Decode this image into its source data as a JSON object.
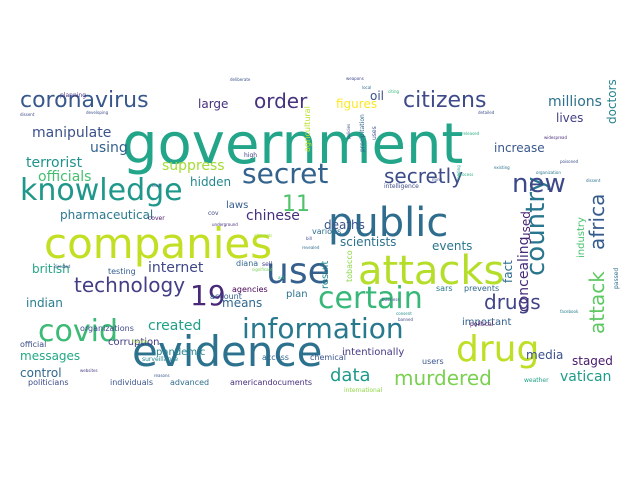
{
  "words": [
    {
      "text": "government",
      "color": "#23a58a"
    },
    {
      "text": "companies",
      "color": "#c2df23"
    },
    {
      "text": "public",
      "color": "#2f6d8e"
    },
    {
      "text": "evidence",
      "color": "#2c728e"
    },
    {
      "text": "attacks",
      "color": "#b5de2b"
    },
    {
      "text": "certain",
      "color": "#37b878"
    },
    {
      "text": "use",
      "color": "#355f8d"
    },
    {
      "text": "information",
      "color": "#29798e"
    },
    {
      "text": "knowledge",
      "color": "#1f988b"
    },
    {
      "text": "secret",
      "color": "#33638d"
    },
    {
      "text": "drug",
      "color": "#bddf26"
    },
    {
      "text": "covid",
      "color": "#3bbb75"
    },
    {
      "text": "country",
      "color": "#2a768e"
    },
    {
      "text": "new",
      "color": "#3e4989"
    },
    {
      "text": "coronavirus",
      "color": "#38588c"
    },
    {
      "text": "citizens",
      "color": "#3e4a89"
    },
    {
      "text": "order",
      "color": "#46327e"
    },
    {
      "text": "secretly",
      "color": "#3d4d8a"
    },
    {
      "text": "technology",
      "color": "#433e85"
    },
    {
      "text": "africa",
      "color": "#365c8d"
    },
    {
      "text": "attack",
      "color": "#5ec962"
    },
    {
      "text": "murdered",
      "color": "#7ad151"
    },
    {
      "text": "drugs",
      "color": "#414487"
    },
    {
      "text": "19",
      "color": "#482878"
    },
    {
      "text": "11",
      "color": "#4ec36b"
    },
    {
      "text": "data",
      "color": "#1e9b8a"
    },
    {
      "text": "manipulate",
      "color": "#3b518b"
    },
    {
      "text": "terrorist",
      "color": "#20928c"
    },
    {
      "text": "using",
      "color": "#34618d"
    },
    {
      "text": "officials",
      "color": "#44bf70"
    },
    {
      "text": "suppress",
      "color": "#a5db36"
    },
    {
      "text": "hidden",
      "color": "#24878e"
    },
    {
      "text": "pharmaceutical",
      "color": "#2a788e"
    },
    {
      "text": "chinese",
      "color": "#472f7d"
    },
    {
      "text": "created",
      "color": "#1fa088"
    },
    {
      "text": "internet",
      "color": "#3f4788"
    },
    {
      "text": "british",
      "color": "#22a785"
    },
    {
      "text": "indian",
      "color": "#277f8e"
    },
    {
      "text": "means",
      "color": "#31688e"
    },
    {
      "text": "deaths",
      "color": "#3a548c"
    },
    {
      "text": "concealing",
      "color": "#472c7a"
    },
    {
      "text": "fact",
      "color": "#2e6e8e"
    },
    {
      "text": "used",
      "color": "#482173"
    },
    {
      "text": "increase",
      "color": "#38588c"
    },
    {
      "text": "millions",
      "color": "#2d718e"
    },
    {
      "text": "lives",
      "color": "#424086"
    },
    {
      "text": "doctors",
      "color": "#26828e"
    },
    {
      "text": "media",
      "color": "#3b528b"
    },
    {
      "text": "staged",
      "color": "#48186a"
    },
    {
      "text": "vatican",
      "color": "#1e9c89"
    },
    {
      "text": "scientists",
      "color": "#2c728e"
    },
    {
      "text": "events",
      "color": "#2a768e"
    },
    {
      "text": "industry",
      "color": "#48c16e"
    },
    {
      "text": "laws",
      "color": "#365d8d"
    },
    {
      "text": "large",
      "color": "#46307e"
    },
    {
      "text": "oil",
      "color": "#3b518b"
    },
    {
      "text": "figures",
      "color": "#fde725"
    },
    {
      "text": "messages",
      "color": "#22a884"
    },
    {
      "text": "control",
      "color": "#31688e"
    },
    {
      "text": "corruption",
      "color": "#433d84"
    },
    {
      "text": "intentionally",
      "color": "#443a83"
    },
    {
      "text": "advanced",
      "color": "#2f6c8e"
    },
    {
      "text": "politicians",
      "color": "#3e4c8a"
    },
    {
      "text": "official",
      "color": "#3c4f8a"
    },
    {
      "text": "important",
      "color": "#34608d"
    },
    {
      "text": "pandemic",
      "color": "#26828e"
    },
    {
      "text": "testing",
      "color": "#355e8d"
    },
    {
      "text": "organizations",
      "color": "#3e4a89"
    },
    {
      "text": "agencies",
      "color": "#440154"
    },
    {
      "text": "sars",
      "color": "#2a788e"
    },
    {
      "text": "prevents",
      "color": "#30698e"
    },
    {
      "text": "result",
      "color": "#23888e"
    },
    {
      "text": "plan",
      "color": "#2c738e"
    },
    {
      "text": "diana",
      "color": "#31688e"
    },
    {
      "text": "intelligence",
      "color": "#3e4c8a"
    },
    {
      "text": "individuals",
      "color": "#3a548c"
    },
    {
      "text": "americandocuments",
      "color": "#472f7d"
    },
    {
      "text": "users",
      "color": "#39558c"
    },
    {
      "text": "access",
      "color": "#31688e"
    },
    {
      "text": "chemical",
      "color": "#3a548c"
    },
    {
      "text": "international",
      "color": "#8fd744"
    },
    {
      "text": "planning",
      "color": "#46337f"
    },
    {
      "text": "high",
      "color": "#433e85"
    },
    {
      "text": "account",
      "color": "#355f8d"
    },
    {
      "text": "weather",
      "color": "#20a386"
    },
    {
      "text": "passed",
      "color": "#2e6f8e"
    },
    {
      "text": "political",
      "color": "#470e61"
    },
    {
      "text": "cov",
      "color": "#3f4889"
    },
    {
      "text": "sell",
      "color": "#414287"
    },
    {
      "text": "cover",
      "color": "#481769"
    },
    {
      "text": "tobacco",
      "color": "#8bd646"
    },
    {
      "text": "various",
      "color": "#2e6e8e"
    },
    {
      "text": "agricultural",
      "color": "#bade28"
    },
    {
      "text": "uses",
      "color": "#3b528b"
    },
    {
      "text": "weapons",
      "color": "#404688"
    },
    {
      "text": "developing",
      "color": "#3d4e8a"
    },
    {
      "text": "dissent",
      "color": "#3e4989"
    },
    {
      "text": "precipitation",
      "color": "#31678e"
    },
    {
      "text": "deliberate",
      "color": "#3b518b"
    },
    {
      "text": "cure",
      "color": "#3b528b"
    },
    {
      "text": "organization",
      "color": "#2a778e"
    },
    {
      "text": "existing",
      "color": "#2d708e"
    },
    {
      "text": "leading",
      "color": "#1f998a"
    },
    {
      "text": "surveillance",
      "color": "#25848e"
    },
    {
      "text": "significant",
      "color": "#73d056"
    },
    {
      "text": "facebook",
      "color": "#287c8e"
    },
    {
      "text": "consent",
      "color": "#238a8d"
    },
    {
      "text": "business",
      "color": "#3f4788"
    },
    {
      "text": "revealed",
      "color": "#2e6f8e"
    },
    {
      "text": "released",
      "color": "#25ac82"
    },
    {
      "text": "widespread",
      "color": "#472d7b"
    },
    {
      "text": "policies",
      "color": "#3f4889"
    },
    {
      "text": "attempts",
      "color": "#a0da39"
    },
    {
      "text": "mind",
      "color": "#3d4d8a"
    },
    {
      "text": "citing",
      "color": "#32b67a"
    },
    {
      "text": "banned",
      "color": "#3e4989"
    },
    {
      "text": "fluoride",
      "color": "#a2da37"
    },
    {
      "text": "dissent",
      "color": "#2c718e"
    },
    {
      "text": "websites",
      "color": "#433e85"
    },
    {
      "text": "reasons",
      "color": "#3b528b"
    },
    {
      "text": "underground",
      "color": "#472d7b"
    },
    {
      "text": "process",
      "color": "#29af7f"
    },
    {
      "text": "detailed",
      "color": "#3d4e8a"
    },
    {
      "text": "directed",
      "color": "#414487"
    },
    {
      "text": "poisoned",
      "color": "#3c4f8a"
    },
    {
      "text": "local",
      "color": "#2d708e"
    },
    {
      "text": "aid",
      "color": "#35b779"
    },
    {
      "text": "bill",
      "color": "#3e4a89"
    }
  ]
}
